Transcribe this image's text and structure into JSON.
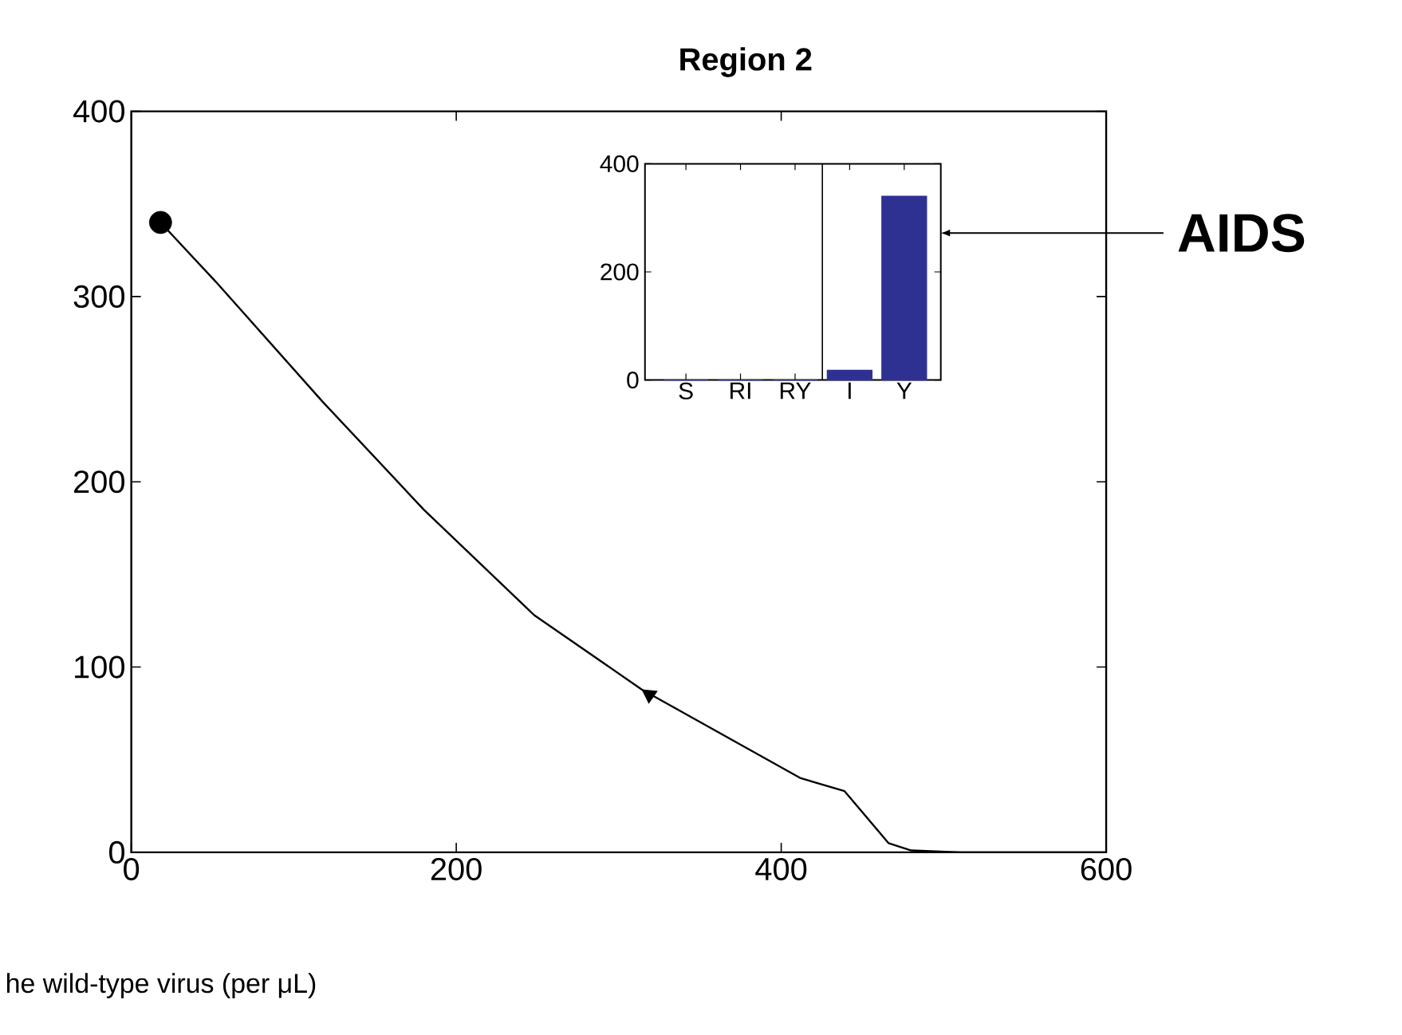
{
  "chart_data": [
    {
      "type": "line",
      "title": "Region 2",
      "xlabel": "he wild-type virus (per μL)",
      "xlim": [
        0,
        600
      ],
      "ylim": [
        0,
        400
      ],
      "xticks": [
        0,
        200,
        400,
        600
      ],
      "yticks": [
        0,
        100,
        200,
        300,
        400
      ],
      "series": [
        {
          "type": "line",
          "color": "#000000",
          "marker": "none",
          "x": [
            18,
            52,
            118,
            180,
            248,
            314,
            412,
            439,
            466,
            480,
            510,
            560,
            600
          ],
          "values": [
            340,
            308,
            243,
            185,
            128,
            88,
            40,
            33,
            5,
            1,
            0,
            0,
            0
          ]
        },
        {
          "type": "scatter",
          "color": "#000000",
          "marker": "circle",
          "x": [
            18
          ],
          "values": [
            340
          ]
        }
      ]
    },
    {
      "type": "bar",
      "categories": [
        "S",
        "RI",
        "RY",
        "I",
        "Y"
      ],
      "values": [
        0,
        0,
        0,
        18,
        340
      ],
      "color": "#2e3192",
      "ylim": [
        0,
        400
      ],
      "yticks": [
        0,
        200,
        400
      ],
      "annotations": [
        "AIDS"
      ]
    }
  ]
}
